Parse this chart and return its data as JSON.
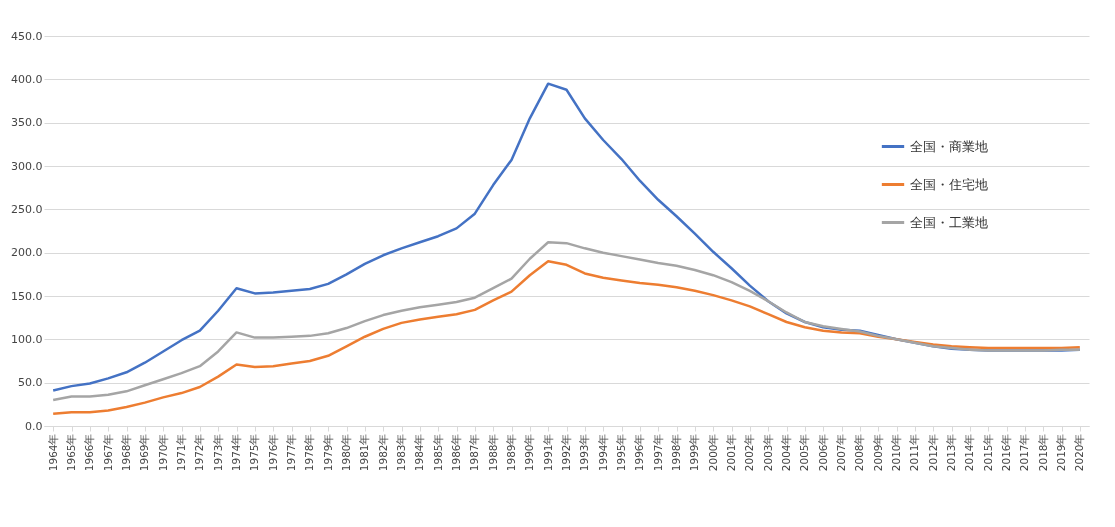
{
  "chart_data": {
    "type": "line",
    "categories": [
      "1964年",
      "1965年",
      "1966年",
      "1967年",
      "1968年",
      "1969年",
      "1970年",
      "1971年",
      "1972年",
      "1973年",
      "1974年",
      "1975年",
      "1976年",
      "1977年",
      "1978年",
      "1979年",
      "1980年",
      "1981年",
      "1982年",
      "1983年",
      "1984年",
      "1985年",
      "1986年",
      "1987年",
      "1988年",
      "1989年",
      "1990年",
      "1991年",
      "1992年",
      "1993年",
      "1994年",
      "1995年",
      "1996年",
      "1997年",
      "1998年",
      "1999年",
      "2000年",
      "2001年",
      "2002年",
      "2003年",
      "2004年",
      "2005年",
      "2006年",
      "2007年",
      "2008年",
      "2009年",
      "2010年",
      "2011年",
      "2012年",
      "2013年",
      "2014年",
      "2015年",
      "2016年",
      "2017年",
      "2018年",
      "2019年",
      "2020年"
    ],
    "series": [
      {
        "name": "全国・商業地",
        "color": "#4472c4",
        "values": [
          41,
          46,
          49,
          55,
          62,
          73,
          86,
          99,
          110,
          133,
          159,
          153,
          154,
          156,
          158,
          164,
          175,
          187,
          197,
          205,
          212,
          219,
          228,
          245,
          278,
          307,
          355,
          395,
          388,
          355,
          330,
          308,
          283,
          261,
          242,
          222,
          201,
          182,
          162,
          144,
          130,
          120,
          114,
          111,
          110,
          105,
          100,
          96,
          92,
          89,
          88,
          87,
          87,
          87,
          87,
          87,
          88
        ]
      },
      {
        "name": "全国・住宅地",
        "color": "#ed7d31",
        "values": [
          14,
          16,
          16,
          18,
          22,
          27,
          33,
          38,
          45,
          57,
          71,
          68,
          69,
          72,
          75,
          81,
          92,
          103,
          112,
          119,
          123,
          126,
          129,
          134,
          145,
          155,
          174,
          190,
          186,
          176,
          171,
          168,
          165,
          163,
          160,
          156,
          151,
          145,
          138,
          129,
          120,
          114,
          110,
          108,
          107,
          103,
          100,
          97,
          94,
          92,
          91,
          90,
          90,
          90,
          90,
          90,
          91
        ]
      },
      {
        "name": "全国・工業地",
        "color": "#a5a5a5",
        "values": [
          30,
          34,
          34,
          36,
          40,
          47,
          54,
          61,
          69,
          86,
          108,
          102,
          102,
          103,
          104,
          107,
          113,
          121,
          128,
          133,
          137,
          140,
          143,
          148,
          159,
          170,
          193,
          212,
          211,
          205,
          200,
          196,
          192,
          188,
          185,
          180,
          174,
          166,
          156,
          144,
          131,
          120,
          115,
          112,
          109,
          104,
          100,
          96,
          92,
          90,
          88,
          87,
          87,
          87,
          87,
          88,
          88
        ]
      }
    ],
    "ylim": [
      0,
      450
    ],
    "yticks": [
      {
        "value": 0,
        "label": "0.0"
      },
      {
        "value": 50,
        "label": "50.0"
      },
      {
        "value": 100,
        "label": "100.0"
      },
      {
        "value": 150,
        "label": "150.0"
      },
      {
        "value": 200,
        "label": "200.0"
      },
      {
        "value": 250,
        "label": "250.0"
      },
      {
        "value": 300,
        "label": "300.0"
      },
      {
        "value": 350,
        "label": "350.0"
      },
      {
        "value": 400,
        "label": "400.0"
      },
      {
        "value": 450,
        "label": "450.0"
      }
    ],
    "grid": "y",
    "legend": "right",
    "marker": "none",
    "line_style": "solid"
  }
}
